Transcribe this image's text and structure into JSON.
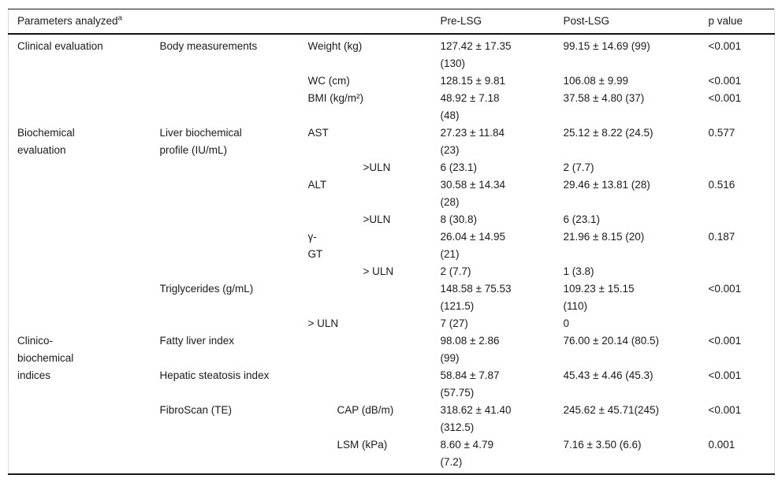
{
  "table": {
    "header": {
      "params_label": "Parameters analyzed",
      "params_footnote_marker": "a",
      "pre_label": "Pre-LSG",
      "post_label": "Post-LSG",
      "p_label": "p value"
    },
    "rows": [
      {
        "category": "Clinical evaluation",
        "category_rowspan": 3,
        "subcategory": "Body measurements",
        "subcategory_rowspan": 3,
        "parameter": "Weight (kg)",
        "indent": 0,
        "pre": "127.42 ± 17.35\n(130)",
        "post": "99.15 ± 14.69 (99)",
        "p": "<0.001"
      },
      {
        "parameter": "WC (cm)",
        "indent": 0,
        "pre": "128.15 ± 9.81",
        "post": "106.08 ± 9.99",
        "p": "<0.001"
      },
      {
        "parameter": "BMI (kg/m²)",
        "indent": 0,
        "pre": "48.92 ± 7.18\n(48)",
        "post": "37.58 ± 4.80 (37)",
        "p": "<0.001"
      },
      {
        "category": "Biochemical\nevaluation",
        "category_rowspan": 8,
        "subcategory": "Liver biochemical\nprofile (IU/mL)",
        "subcategory_rowspan": 6,
        "parameter": "AST",
        "indent": 0,
        "pre": "27.23 ± 11.84\n(23)",
        "post": "25.12 ± 8.22 (24.5)",
        "p": "0.577"
      },
      {
        "parameter": ">ULN",
        "indent": 2,
        "pre": "6 (23.1)",
        "post": "2 (7.7)",
        "p": ""
      },
      {
        "parameter": "ALT",
        "indent": 0,
        "pre": "30.58 ± 14.34\n(28)",
        "post": "29.46 ± 13.81 (28)",
        "p": "0.516"
      },
      {
        "parameter": ">ULN",
        "indent": 2,
        "pre": "8 (30.8)",
        "post": "6 (23.1)",
        "p": ""
      },
      {
        "parameter": "γ-\nGT",
        "indent": 0,
        "pre": "26.04 ± 14.95\n(21)",
        "post": "21.96 ± 8.15 (20)",
        "p": "0.187"
      },
      {
        "parameter": "> ULN",
        "indent": 2,
        "pre": "2 (7.7)",
        "post": "1 (3.8)",
        "p": ""
      },
      {
        "subcategory": "Triglycerides (g/mL)",
        "subcategory_rowspan": 2,
        "pre": "148.58 ± 75.53\n(121.5)",
        "post": "109.23 ± 15.15\n(110)",
        "p": "<0.001"
      },
      {
        "parameter": "> ULN",
        "indent": 0,
        "pre": "7 (27)",
        "post": "0",
        "p": ""
      },
      {
        "category": "Clinico-\nbiochemical\nindices",
        "category_rowspan": 4,
        "subcategory": "Fatty liver index",
        "subcategory_rowspan": 1,
        "pre": "98.08 ± 2.86\n(99)",
        "post": "76.00 ± 20.14 (80.5)",
        "p": "<0.001"
      },
      {
        "subcategory": "Hepatic steatosis index",
        "subcategory_rowspan": 1,
        "pre": "58.84 ± 7.87\n(57.75)",
        "post": "45.43 ± 4.46 (45.3)",
        "p": "<0.001"
      },
      {
        "subcategory": "FibroScan (TE)",
        "subcategory_rowspan": 2,
        "parameter": "CAP (dB/m)",
        "indent": 1,
        "pre": "318.62 ± 41.40\n(312.5)",
        "post": "245.62 ± 45.71(245)",
        "p": "<0.001"
      },
      {
        "parameter": "LSM (kPa)",
        "indent": 1,
        "pre": "8.60 ± 4.79\n(7.2)",
        "post": "7.16 ± 3.50 (6.6)",
        "p": "0.001"
      }
    ]
  }
}
